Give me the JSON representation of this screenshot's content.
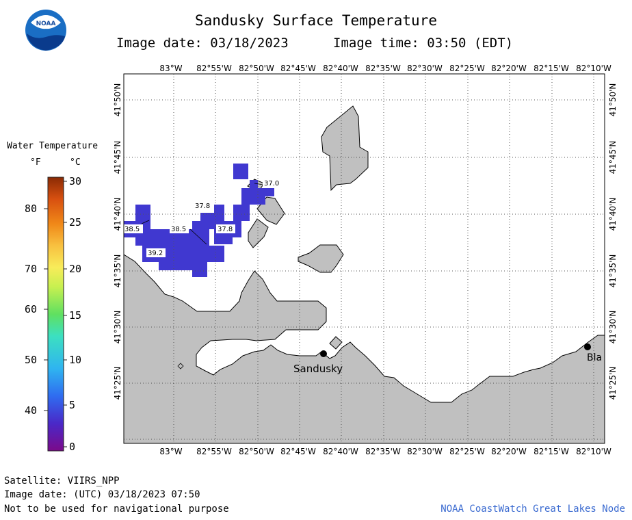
{
  "title": "Sandusky Surface Temperature",
  "image_date_label": "Image date: 03/18/2023",
  "image_time_label": "Image time: 03:50 (EDT)",
  "logo_text": "NOAA",
  "legend": {
    "title": "Water Temperature",
    "unit_f": "°F",
    "unit_c": "°C",
    "f_ticks": [
      "80",
      "70",
      "60",
      "50",
      "40"
    ],
    "c_ticks": [
      "30",
      "25",
      "20",
      "15",
      "10",
      "5",
      "0"
    ]
  },
  "map": {
    "lon_labels": [
      "83°W",
      "82°55'W",
      "82°50'W",
      "82°45'W",
      "82°40'W",
      "82°35'W",
      "82°30'W",
      "82°25'W",
      "82°20'W",
      "82°15'W",
      "82°10'W"
    ],
    "lat_labels": [
      "41°50'N",
      "41°45'N",
      "41°40'N",
      "41°35'N",
      "41°30'N",
      "41°25'N"
    ],
    "temp_labels": [
      "37.0",
      "37.8",
      "38.5",
      "38.5",
      "37.8",
      "39.2"
    ],
    "places": [
      "Sandusky",
      "Bla"
    ]
  },
  "footer": {
    "satellite": "Satellite: VIIRS_NPP",
    "utc_date": "Image date: (UTC) 03/18/2023  07:50",
    "warning": "Not to be used for navigational purpose",
    "credit": "NOAA CoastWatch Great Lakes Node"
  }
}
